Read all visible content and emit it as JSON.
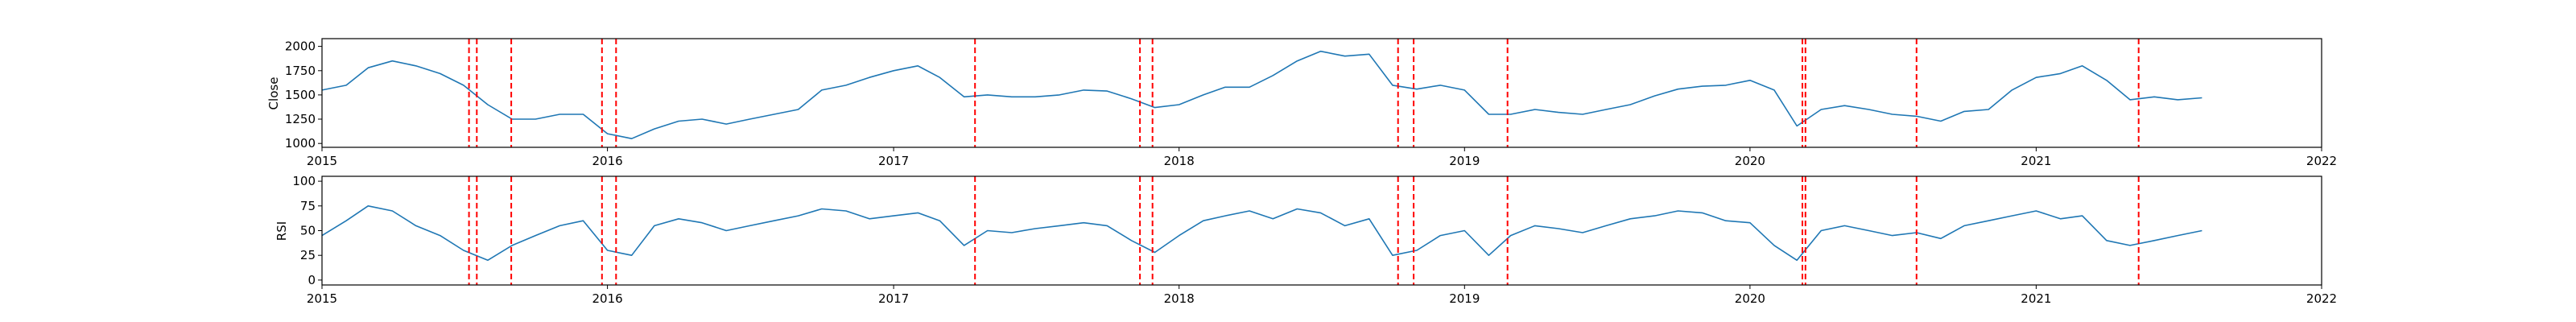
{
  "chart_data": [
    {
      "type": "line",
      "title": "",
      "xlabel": "",
      "ylabel": "Close",
      "xlim": [
        "2015-01-01",
        "2022-01-01"
      ],
      "ylim": [
        960,
        2080
      ],
      "grid": false,
      "xticks": [
        "2015",
        "2016",
        "2017",
        "2018",
        "2019",
        "2020",
        "2021",
        "2022"
      ],
      "yticks": [
        1000,
        1250,
        1500,
        1750,
        2000
      ],
      "series": [
        {
          "name": "",
          "color": "#1f77b4",
          "x": [
            "2015-01-01",
            "2015-02-01",
            "2015-03-01",
            "2015-04-01",
            "2015-05-01",
            "2015-06-01",
            "2015-07-01",
            "2015-08-01",
            "2015-09-01",
            "2015-10-01",
            "2015-11-01",
            "2015-12-01",
            "2016-01-01",
            "2016-02-01",
            "2016-03-01",
            "2016-04-01",
            "2016-05-01",
            "2016-06-01",
            "2016-07-01",
            "2016-08-01",
            "2016-09-01",
            "2016-10-01",
            "2016-11-01",
            "2016-12-01",
            "2017-01-01",
            "2017-02-01",
            "2017-03-01",
            "2017-04-01",
            "2017-05-01",
            "2017-06-01",
            "2017-07-01",
            "2017-08-01",
            "2017-09-01",
            "2017-10-01",
            "2017-11-01",
            "2017-12-01",
            "2018-01-01",
            "2018-02-01",
            "2018-03-01",
            "2018-04-01",
            "2018-05-01",
            "2018-06-01",
            "2018-07-01",
            "2018-08-01",
            "2018-09-01",
            "2018-10-01",
            "2018-11-01",
            "2018-12-01",
            "2019-01-01",
            "2019-02-01",
            "2019-03-01",
            "2019-04-01",
            "2019-05-01",
            "2019-06-01",
            "2019-07-01",
            "2019-08-01",
            "2019-09-01",
            "2019-10-01",
            "2019-11-01",
            "2019-12-01",
            "2020-01-01",
            "2020-02-01",
            "2020-03-01",
            "2020-04-01",
            "2020-05-01",
            "2020-06-01",
            "2020-07-01",
            "2020-08-01",
            "2020-09-01",
            "2020-10-01",
            "2020-11-01",
            "2020-12-01",
            "2021-01-01",
            "2021-02-01",
            "2021-03-01",
            "2021-04-01",
            "2021-05-01",
            "2021-06-01",
            "2021-07-01",
            "2021-08-01"
          ],
          "y": [
            1550,
            1600,
            1780,
            1850,
            1800,
            1720,
            1600,
            1400,
            1250,
            1250,
            1300,
            1300,
            1100,
            1050,
            1150,
            1230,
            1250,
            1200,
            1250,
            1300,
            1350,
            1550,
            1600,
            1680,
            1750,
            1800,
            1680,
            1480,
            1500,
            1480,
            1480,
            1500,
            1550,
            1540,
            1460,
            1370,
            1400,
            1500,
            1580,
            1580,
            1700,
            1850,
            1950,
            1900,
            1920,
            1600,
            1560,
            1600,
            1550,
            1300,
            1300,
            1350,
            1320,
            1300,
            1350,
            1400,
            1490,
            1560,
            1590,
            1600,
            1650,
            1550,
            1180,
            1350,
            1390,
            1350,
            1300,
            1280,
            1230,
            1330,
            1350,
            1550,
            1680,
            1720,
            1800,
            1650,
            1450,
            1480,
            1450,
            1470
          ]
        }
      ],
      "signals": [
        "2015-07-08",
        "2015-07-18",
        "2015-08-31",
        "2015-12-25",
        "2016-01-12",
        "2017-04-15",
        "2017-11-12",
        "2017-11-28",
        "2018-10-08",
        "2018-10-28",
        "2019-02-25",
        "2020-03-08",
        "2020-03-12",
        "2020-08-01",
        "2021-05-12"
      ]
    },
    {
      "type": "line",
      "title": "",
      "xlabel": "",
      "ylabel": "RSI",
      "xlim": [
        "2015-01-01",
        "2022-01-01"
      ],
      "ylim": [
        -5,
        105
      ],
      "grid": false,
      "xticks": [
        "2015",
        "2016",
        "2017",
        "2018",
        "2019",
        "2020",
        "2021",
        "2022"
      ],
      "yticks": [
        0,
        25,
        50,
        75,
        100
      ],
      "series": [
        {
          "name": "",
          "color": "#1f77b4",
          "x": [
            "2015-01-01",
            "2015-02-01",
            "2015-03-01",
            "2015-04-01",
            "2015-05-01",
            "2015-06-01",
            "2015-07-01",
            "2015-08-01",
            "2015-09-01",
            "2015-10-01",
            "2015-11-01",
            "2015-12-01",
            "2016-01-01",
            "2016-02-01",
            "2016-03-01",
            "2016-04-01",
            "2016-05-01",
            "2016-06-01",
            "2016-07-01",
            "2016-08-01",
            "2016-09-01",
            "2016-10-01",
            "2016-11-01",
            "2016-12-01",
            "2017-01-01",
            "2017-02-01",
            "2017-03-01",
            "2017-04-01",
            "2017-05-01",
            "2017-06-01",
            "2017-07-01",
            "2017-08-01",
            "2017-09-01",
            "2017-10-01",
            "2017-11-01",
            "2017-12-01",
            "2018-01-01",
            "2018-02-01",
            "2018-03-01",
            "2018-04-01",
            "2018-05-01",
            "2018-06-01",
            "2018-07-01",
            "2018-08-01",
            "2018-09-01",
            "2018-10-01",
            "2018-11-01",
            "2018-12-01",
            "2019-01-01",
            "2019-02-01",
            "2019-03-01",
            "2019-04-01",
            "2019-05-01",
            "2019-06-01",
            "2019-07-01",
            "2019-08-01",
            "2019-09-01",
            "2019-10-01",
            "2019-11-01",
            "2019-12-01",
            "2020-01-01",
            "2020-02-01",
            "2020-03-01",
            "2020-04-01",
            "2020-05-01",
            "2020-06-01",
            "2020-07-01",
            "2020-08-01",
            "2020-09-01",
            "2020-10-01",
            "2020-11-01",
            "2020-12-01",
            "2021-01-01",
            "2021-02-01",
            "2021-03-01",
            "2021-04-01",
            "2021-05-01",
            "2021-06-01",
            "2021-07-01",
            "2021-08-01"
          ],
          "y": [
            45,
            60,
            75,
            70,
            55,
            45,
            30,
            20,
            35,
            45,
            55,
            60,
            30,
            25,
            55,
            62,
            58,
            50,
            55,
            60,
            65,
            72,
            70,
            62,
            65,
            68,
            60,
            35,
            50,
            48,
            52,
            55,
            58,
            55,
            40,
            28,
            45,
            60,
            65,
            70,
            62,
            72,
            68,
            55,
            62,
            25,
            30,
            45,
            50,
            25,
            45,
            55,
            52,
            48,
            55,
            62,
            65,
            70,
            68,
            60,
            58,
            35,
            20,
            50,
            55,
            50,
            45,
            48,
            42,
            55,
            60,
            65,
            70,
            62,
            65,
            40,
            35,
            40,
            45,
            50
          ]
        }
      ],
      "signals": [
        "2015-07-08",
        "2015-07-18",
        "2015-08-31",
        "2015-12-25",
        "2016-01-12",
        "2017-04-15",
        "2017-11-12",
        "2017-11-28",
        "2018-10-08",
        "2018-10-28",
        "2019-02-25",
        "2020-03-08",
        "2020-03-12",
        "2020-08-01",
        "2021-05-12"
      ]
    }
  ]
}
